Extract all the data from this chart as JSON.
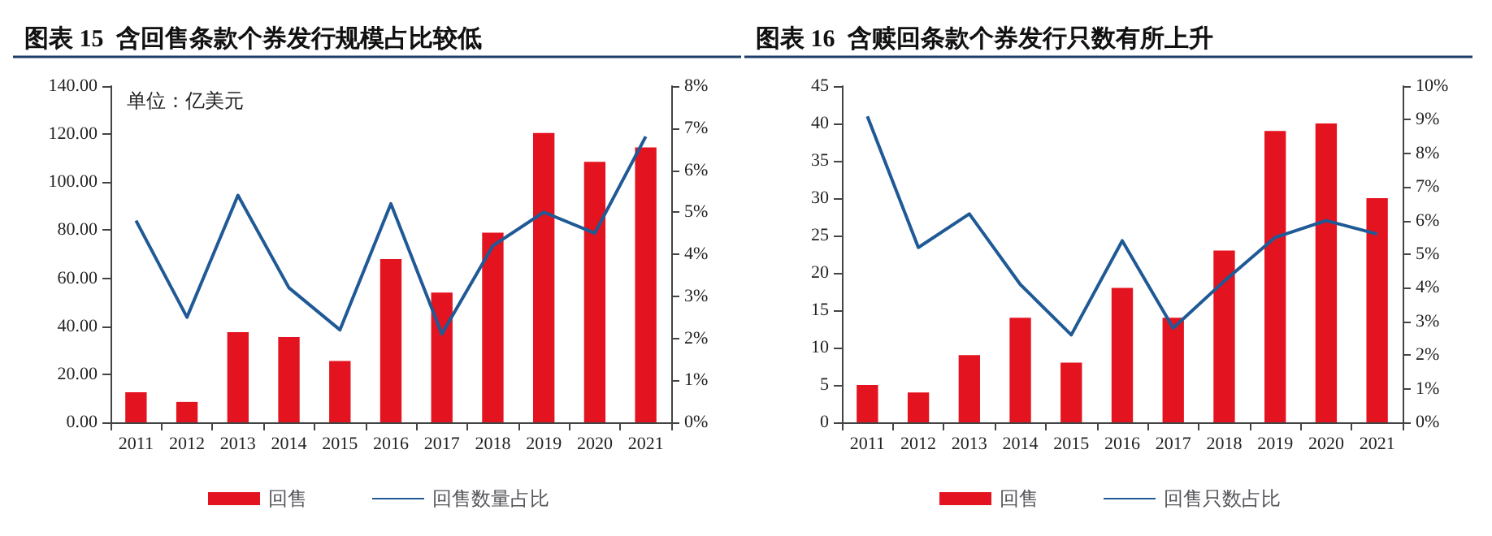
{
  "chart_data": [
    {
      "type": "bar",
      "title": "图表 15  含回售条款个券发行规模占比较低",
      "annotations": [
        "单位：亿美元"
      ],
      "categories": [
        "2011",
        "2012",
        "2013",
        "2014",
        "2015",
        "2016",
        "2017",
        "2018",
        "2019",
        "2020",
        "2021"
      ],
      "series": [
        {
          "name": "回售",
          "color": "#e3141f",
          "values": [
            12.5,
            8.5,
            37.5,
            35.5,
            25.5,
            68,
            54,
            79,
            120.5,
            108.5,
            114.5
          ]
        },
        {
          "name": "回售数量占比",
          "type": "line",
          "axis": "y2",
          "color": "#1f5a96",
          "values": [
            4.8,
            2.5,
            5.4,
            3.2,
            2.2,
            5.2,
            2.1,
            4.2,
            5.0,
            4.5,
            6.8
          ]
        }
      ],
      "ylim": [
        0,
        140
      ],
      "yticks": [
        {
          "value": 0,
          "label": "0.00"
        },
        {
          "value": 20,
          "label": "20.00"
        },
        {
          "value": 40,
          "label": "40.00"
        },
        {
          "value": 60,
          "label": "60.00"
        },
        {
          "value": 80,
          "label": "80.00"
        },
        {
          "value": 100,
          "label": "100.00"
        },
        {
          "value": 120,
          "label": "120.00"
        },
        {
          "value": 140,
          "label": "140.00"
        }
      ],
      "y2lim": [
        0,
        8
      ],
      "y2ticks": [
        {
          "value": 0,
          "label": "0%"
        },
        {
          "value": 1,
          "label": "1%"
        },
        {
          "value": 2,
          "label": "2%"
        },
        {
          "value": 3,
          "label": "3%"
        },
        {
          "value": 4,
          "label": "4%"
        },
        {
          "value": 5,
          "label": "5%"
        },
        {
          "value": 6,
          "label": "6%"
        },
        {
          "value": 7,
          "label": "7%"
        },
        {
          "value": 8,
          "label": "8%"
        }
      ],
      "grid": false,
      "legend": "bottom",
      "marker": "none"
    },
    {
      "type": "bar",
      "title": "图表 16  含赎回条款个券发行只数有所上升",
      "categories": [
        "2011",
        "2012",
        "2013",
        "2014",
        "2015",
        "2016",
        "2017",
        "2018",
        "2019",
        "2020",
        "2021"
      ],
      "series": [
        {
          "name": "回售",
          "color": "#e3141f",
          "values": [
            5,
            4,
            9,
            14,
            8,
            18,
            14,
            23,
            39,
            40,
            30
          ]
        },
        {
          "name": "回售只数占比",
          "type": "line",
          "axis": "y2",
          "color": "#1f5a96",
          "values": [
            9.1,
            5.2,
            6.2,
            4.1,
            2.6,
            5.4,
            2.8,
            4.2,
            5.5,
            6.0,
            5.6
          ]
        }
      ],
      "ylim": [
        0,
        45
      ],
      "yticks": [
        0,
        5,
        10,
        15,
        20,
        25,
        30,
        35,
        40,
        45
      ],
      "y2lim": [
        0,
        10
      ],
      "y2ticks": [
        {
          "value": 0,
          "label": "0%"
        },
        {
          "value": 1,
          "label": "1%"
        },
        {
          "value": 2,
          "label": "2%"
        },
        {
          "value": 3,
          "label": "3%"
        },
        {
          "value": 4,
          "label": "4%"
        },
        {
          "value": 5,
          "label": "5%"
        },
        {
          "value": 6,
          "label": "6%"
        },
        {
          "value": 7,
          "label": "7%"
        },
        {
          "value": 8,
          "label": "8%"
        },
        {
          "value": 9,
          "label": "9%"
        },
        {
          "value": 10,
          "label": "10%"
        }
      ],
      "grid": false,
      "legend": "bottom",
      "marker": "none"
    }
  ]
}
